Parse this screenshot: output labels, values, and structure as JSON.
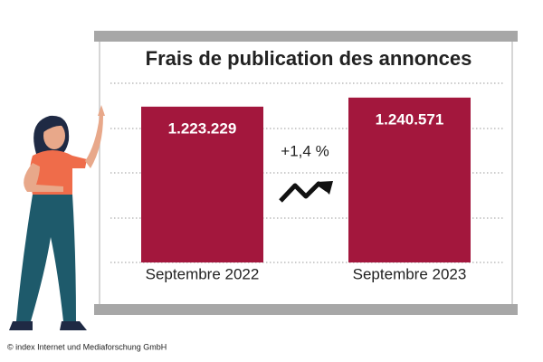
{
  "chart_data": {
    "type": "bar",
    "title": "Frais de publication des annonces",
    "categories": [
      "Septembre 2022",
      "Septembre 2023"
    ],
    "values": [
      1223229,
      1240571
    ],
    "value_labels": [
      "1.223.229",
      "1.240.571"
    ],
    "color": "#a3173d",
    "ylim": [
      925000,
      1268000
    ],
    "annotation": "+1,4 %",
    "source": "© index Internet und Mediaforschung GmbH"
  }
}
